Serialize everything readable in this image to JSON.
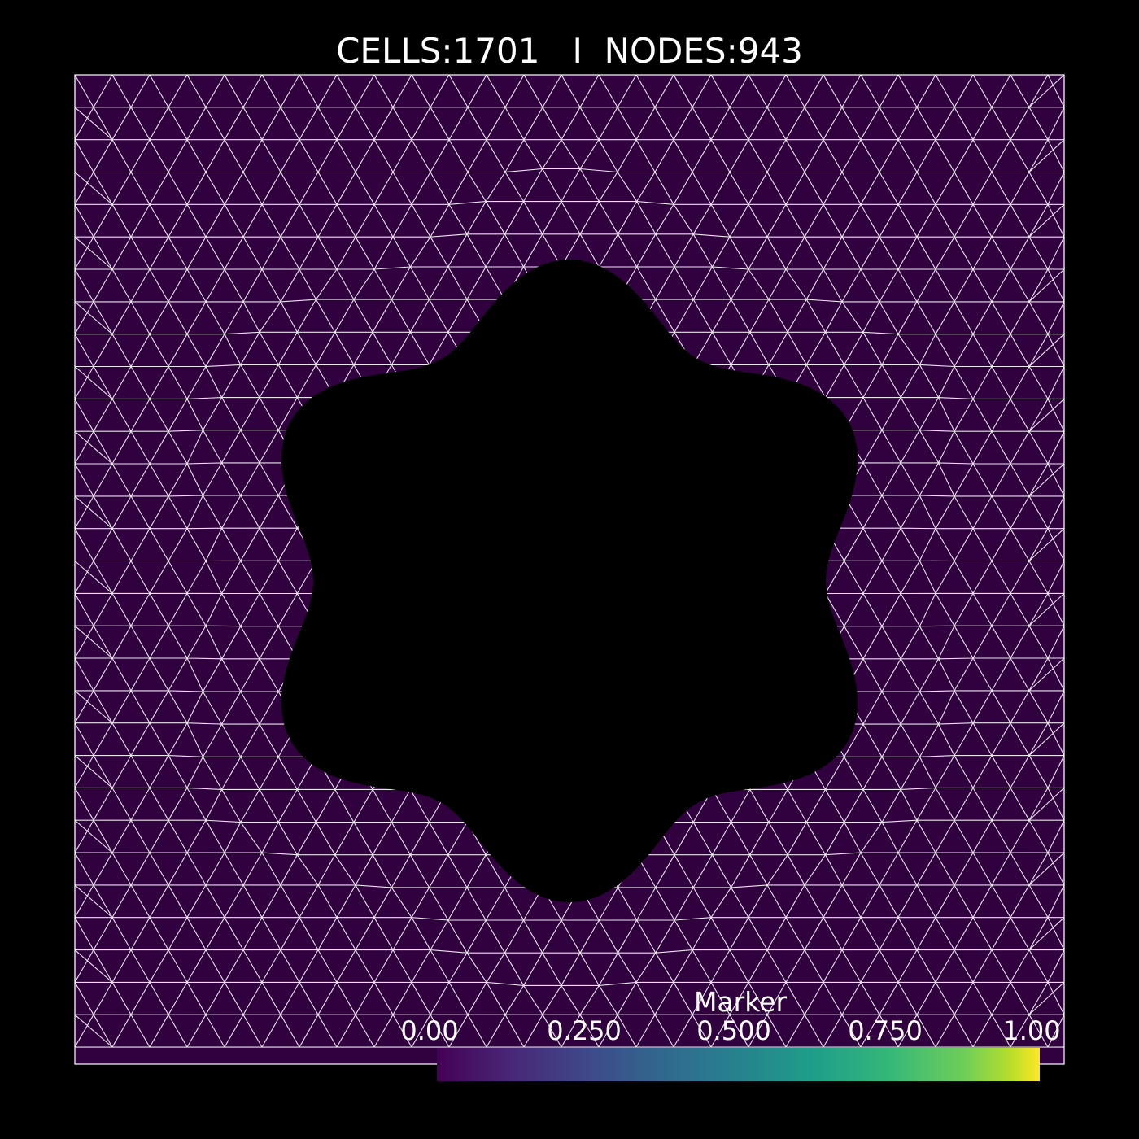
{
  "header": {
    "title": "CELLS:1701   I  NODES:943"
  },
  "mesh": {
    "cells": 1701,
    "nodes": 943,
    "fill_color": "#30003f",
    "edge_color": "#ffffff",
    "hole_color": "#000000",
    "hole_shape": "rounded-hexagon"
  },
  "colorbar": {
    "title": "Marker",
    "ticks": [
      "0.00",
      "0.250",
      "0.500",
      "0.750",
      "1.00"
    ],
    "colormap": "viridis",
    "range": [
      0,
      1
    ]
  }
}
